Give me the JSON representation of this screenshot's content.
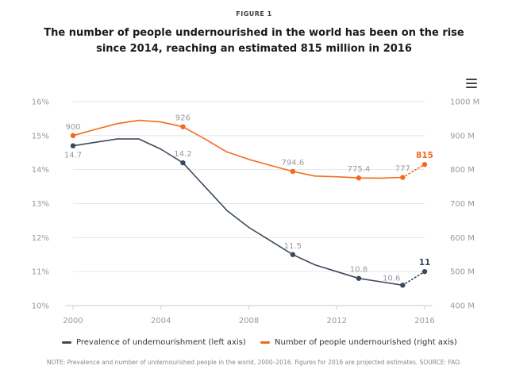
{
  "figure_label": "FIGURE 1",
  "title_line1": "The number of people undernourished in the world has been on the rise",
  "title_line2": "since 2014, reaching an estimated 815 million in 2016",
  "menu_icon": "hamburger-menu-icon",
  "note": "NOTE: Prevalence and number of undernourished people in the world, 2000–2016. Figures for 2016 are projected estimates. SOURCE: FAO.",
  "colors": {
    "prevalence": "#3b4a5a",
    "number": "#f26b1d",
    "grid": "#e6e6e6",
    "tick": "#999999",
    "label_gray": "#999999"
  },
  "chart_data": {
    "type": "line",
    "x_ticks": [
      2000,
      2004,
      2008,
      2012,
      2016
    ],
    "xlim": [
      2000,
      2016
    ],
    "y_left": {
      "ylim": [
        10,
        16
      ],
      "ticks": [
        10,
        11,
        12,
        13,
        14,
        15,
        16
      ],
      "tick_labels": [
        "10%",
        "11%",
        "12%",
        "13%",
        "14%",
        "15%",
        "16%"
      ]
    },
    "y_right": {
      "ylim": [
        400,
        1000
      ],
      "ticks": [
        400,
        500,
        600,
        700,
        800,
        900,
        1000
      ],
      "tick_labels": [
        "400 M",
        "500 M",
        "600 M",
        "700 M",
        "800 M",
        "900 M",
        "1000 M"
      ]
    },
    "series": [
      {
        "name": "Prevalence of undernourishment (left axis)",
        "axis": "left",
        "x": [
          2000,
          2002,
          2003,
          2004,
          2005,
          2006,
          2007,
          2008,
          2009,
          2010,
          2011,
          2012,
          2013,
          2014,
          2015
        ],
        "y": [
          14.7,
          14.9,
          14.9,
          14.6,
          14.2,
          13.5,
          12.8,
          12.3,
          11.9,
          11.5,
          11.2,
          11.0,
          10.8,
          10.7,
          10.6
        ],
        "projected": {
          "x": [
            2015,
            2016
          ],
          "y": [
            10.6,
            11
          ]
        },
        "labeled_points": [
          {
            "x": 2000,
            "y": 14.7,
            "label": "14.7",
            "pos": "below"
          },
          {
            "x": 2005,
            "y": 14.2,
            "label": "14.2",
            "pos": "above"
          },
          {
            "x": 2010,
            "y": 11.5,
            "label": "11.5",
            "pos": "above"
          },
          {
            "x": 2013,
            "y": 10.8,
            "label": "10.8",
            "pos": "above"
          },
          {
            "x": 2015,
            "y": 10.6,
            "label": "10.6",
            "pos": "above-left"
          },
          {
            "x": 2016,
            "y": 11,
            "label": "11",
            "pos": "above",
            "bold": true
          }
        ]
      },
      {
        "name": "Number of people undernourished (right axis)",
        "axis": "right",
        "x": [
          2000,
          2001,
          2002,
          2003,
          2004,
          2005,
          2006,
          2007,
          2008,
          2009,
          2010,
          2011,
          2012,
          2013,
          2014,
          2015
        ],
        "y": [
          900,
          918,
          935,
          945,
          940,
          926,
          890,
          852,
          830,
          812,
          794.6,
          781,
          779,
          775.4,
          775,
          777
        ],
        "projected": {
          "x": [
            2015,
            2016
          ],
          "y": [
            777,
            815
          ]
        },
        "labeled_points": [
          {
            "x": 2000,
            "y": 900,
            "label": "900",
            "pos": "above"
          },
          {
            "x": 2005,
            "y": 926,
            "label": "926",
            "pos": "above"
          },
          {
            "x": 2010,
            "y": 794.6,
            "label": "794.6",
            "pos": "above"
          },
          {
            "x": 2013,
            "y": 775.4,
            "label": "775.4",
            "pos": "above"
          },
          {
            "x": 2015,
            "y": 777,
            "label": "777",
            "pos": "above"
          },
          {
            "x": 2016,
            "y": 815,
            "label": "815",
            "pos": "above",
            "bold": true
          }
        ]
      }
    ],
    "grid": true,
    "legend_placement": "bottom"
  }
}
